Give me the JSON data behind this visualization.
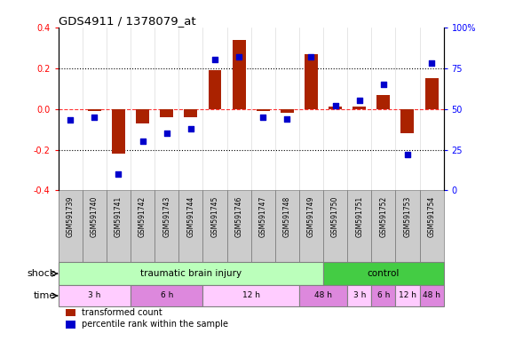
{
  "title": "GDS4911 / 1378079_at",
  "samples": [
    "GSM591739",
    "GSM591740",
    "GSM591741",
    "GSM591742",
    "GSM591743",
    "GSM591744",
    "GSM591745",
    "GSM591746",
    "GSM591747",
    "GSM591748",
    "GSM591749",
    "GSM591750",
    "GSM591751",
    "GSM591752",
    "GSM591753",
    "GSM591754"
  ],
  "red_values": [
    0.0,
    -0.01,
    -0.22,
    -0.07,
    -0.04,
    -0.04,
    0.19,
    0.34,
    -0.01,
    -0.02,
    0.27,
    0.01,
    0.01,
    0.07,
    -0.12,
    0.15
  ],
  "blue_values": [
    43,
    45,
    10,
    30,
    35,
    38,
    80,
    82,
    45,
    44,
    82,
    52,
    55,
    65,
    22,
    78
  ],
  "ylim_left": [
    -0.4,
    0.4
  ],
  "ylim_right": [
    0,
    100
  ],
  "yticks_left": [
    -0.4,
    -0.2,
    0.0,
    0.2,
    0.4
  ],
  "yticks_right": [
    0,
    25,
    50,
    75,
    100
  ],
  "shock_groups": [
    {
      "label": "traumatic brain injury",
      "start": 0,
      "end": 11,
      "color": "#bbffbb"
    },
    {
      "label": "control",
      "start": 11,
      "end": 16,
      "color": "#44cc44"
    }
  ],
  "time_groups": [
    {
      "label": "3 h",
      "start": 0,
      "end": 3,
      "color": "#ffccff"
    },
    {
      "label": "6 h",
      "start": 3,
      "end": 6,
      "color": "#dd88dd"
    },
    {
      "label": "12 h",
      "start": 6,
      "end": 10,
      "color": "#ffccff"
    },
    {
      "label": "48 h",
      "start": 10,
      "end": 12,
      "color": "#dd88dd"
    },
    {
      "label": "3 h",
      "start": 12,
      "end": 13,
      "color": "#ffccff"
    },
    {
      "label": "6 h",
      "start": 13,
      "end": 14,
      "color": "#dd88dd"
    },
    {
      "label": "12 h",
      "start": 14,
      "end": 15,
      "color": "#ffccff"
    },
    {
      "label": "48 h",
      "start": 15,
      "end": 16,
      "color": "#dd88dd"
    }
  ],
  "red_color": "#aa2200",
  "blue_color": "#0000cc",
  "sample_box_color": "#cccccc",
  "legend_red": "transformed count",
  "legend_blue": "percentile rank within the sample",
  "shock_label": "shock",
  "time_label": "time",
  "bar_width": 0.55
}
